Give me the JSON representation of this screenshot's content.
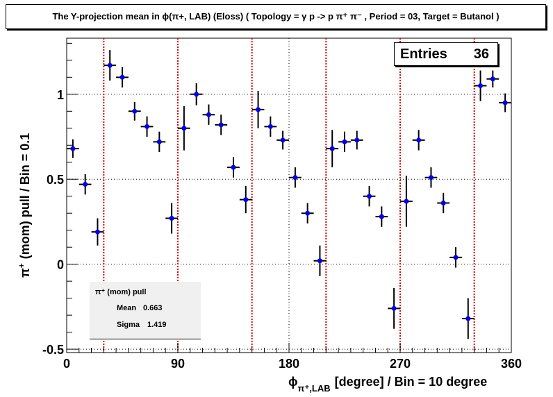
{
  "chart_data": {
    "type": "scatter",
    "title": "The Y-projection mean in ϕ(π+, LAB) (Eloss) ( Topology = γ p -> p π⁺ π⁻ , Period = 03, Target = Butanol )",
    "xlabel": "ϕπ⁺,LAB [degree] / Bin = 10 degree",
    "ylabel": "π⁺ (mom) pull / Bin = 0.1",
    "xlim": [
      0,
      360
    ],
    "ylim": [
      -0.52,
      1.33
    ],
    "x_ticks": [
      "0",
      "90",
      "180",
      "270",
      "360"
    ],
    "y_ticks": [
      "-0.5",
      "0",
      "0.5",
      "1"
    ],
    "grid": true,
    "marker_color": "#0000ee",
    "vlines": [
      30,
      90,
      150,
      210,
      270,
      330
    ],
    "vline_color": "#dd0000",
    "series": [
      {
        "x": [
          5,
          15,
          25,
          35,
          45,
          55,
          65,
          75,
          85,
          95,
          105,
          115,
          125,
          135,
          145,
          155,
          165,
          175,
          185,
          195,
          205,
          215,
          225,
          235,
          245,
          255,
          265,
          275,
          285,
          295,
          305,
          315,
          325,
          335,
          345,
          355
        ],
        "y": [
          0.68,
          0.47,
          0.19,
          1.17,
          1.1,
          0.9,
          0.81,
          0.72,
          0.27,
          0.8,
          1.0,
          0.88,
          0.82,
          0.57,
          0.38,
          0.91,
          0.81,
          0.73,
          0.51,
          0.3,
          0.02,
          0.68,
          0.72,
          0.73,
          0.4,
          0.28,
          -0.26,
          0.37,
          0.73,
          0.51,
          0.36,
          0.04,
          -0.32,
          1.05,
          1.09,
          0.95
        ],
        "yerr": [
          0.055,
          0.06,
          0.08,
          0.09,
          0.06,
          0.055,
          0.06,
          0.06,
          0.09,
          0.13,
          0.065,
          0.06,
          0.06,
          0.06,
          0.08,
          0.11,
          0.06,
          0.055,
          0.06,
          0.06,
          0.09,
          0.11,
          0.06,
          0.055,
          0.06,
          0.06,
          0.12,
          0.15,
          0.06,
          0.06,
          0.06,
          0.06,
          0.12,
          0.09,
          0.05,
          0.055
        ]
      }
    ],
    "legend": {
      "entries_label": "Entries",
      "entries_value": "36"
    }
  },
  "stats": {
    "title": "π⁺ (mom) pull",
    "mean_label": "Mean",
    "mean_value": "0.663",
    "sigma_label": "Sigma",
    "sigma_value": "1.419"
  },
  "axis_text": {
    "x_phi": "ϕ",
    "x_sub": "π⁺,LAB",
    "x_rest": "[degree] / Bin = 10 degree",
    "y_pi": "π",
    "y_sup": "+",
    "y_rest": "(mom) pull / Bin = 0.1"
  }
}
